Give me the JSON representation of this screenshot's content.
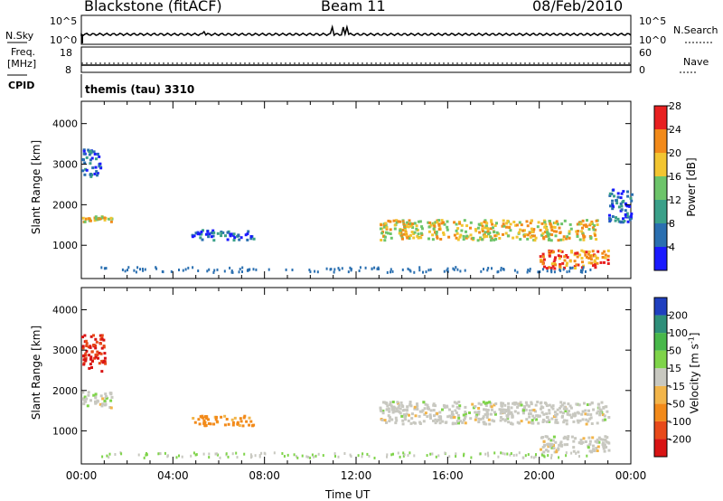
{
  "header": {
    "title": "Blackstone (fitACF)",
    "beam": "Beam 11",
    "date": "08/Feb/2010"
  },
  "top_panels": {
    "nsky_label": "N.Sky",
    "nsky_ticks": [
      "10^5",
      "10^0"
    ],
    "nsearch_label": "N.Search",
    "freq_label_line1": "Freq.",
    "freq_label_line2": "[MHz]",
    "freq_ticks": [
      "18",
      "8"
    ],
    "nave_label": "Nave",
    "nave_ticks": [
      "60",
      "0"
    ],
    "cpid_label": "CPID",
    "cpid_text": "themis (tau) 3310"
  },
  "chart_data": [
    {
      "type": "heatmap",
      "title": "",
      "xlabel": "Time UT",
      "ylabel": "Slant Range [km]",
      "x_tick_labels": [
        "00:00",
        "04:00",
        "08:00",
        "12:00",
        "16:00",
        "20:00",
        "00:00"
      ],
      "y_tick_labels": [
        "1000",
        "2000",
        "3000",
        "4000"
      ],
      "colorbar_label": "Power [dB]",
      "colorbar_ticks": [
        "4",
        "8",
        "12",
        "16",
        "20",
        "24",
        "28"
      ],
      "colorbar_colors": [
        "#1a1aff",
        "#2a6fb0",
        "#3aa089",
        "#6dc46a",
        "#f2c531",
        "#f28a1a",
        "#e82020"
      ],
      "regions": [
        {
          "x": [
            0.0,
            1.3
          ],
          "y": [
            1600,
            1750
          ],
          "value": 18
        },
        {
          "x": [
            0.0,
            0.8
          ],
          "y": [
            2700,
            3400
          ],
          "value": 6
        },
        {
          "x": [
            4.8,
            7.5
          ],
          "y": [
            1150,
            1400
          ],
          "value": 6
        },
        {
          "x": [
            13.0,
            22.5
          ],
          "y": [
            1150,
            1650
          ],
          "value": 20
        },
        {
          "x": [
            20.0,
            23.0
          ],
          "y": [
            450,
            900
          ],
          "value": 22
        },
        {
          "x": [
            23.0,
            24.0
          ],
          "y": [
            1600,
            2400
          ],
          "value": 6
        }
      ]
    },
    {
      "type": "heatmap",
      "title": "",
      "xlabel": "Time UT",
      "ylabel": "Slant Range [km]",
      "x_tick_labels": [
        "00:00",
        "04:00",
        "08:00",
        "12:00",
        "16:00",
        "20:00",
        "00:00"
      ],
      "y_tick_labels": [
        "1000",
        "2000",
        "3000",
        "4000"
      ],
      "colorbar_label": "Velocity [m s^-1]",
      "colorbar_ticks": [
        "200",
        "100",
        "50",
        "15",
        "-15",
        "-50",
        "-100",
        "-200"
      ],
      "colorbar_colors": [
        "#1f3fbf",
        "#2e8f7a",
        "#48b84a",
        "#7fd44a",
        "#c8c8c0",
        "#f2b54a",
        "#f28a1a",
        "#e84a1a",
        "#d81414"
      ],
      "regions": [
        {
          "x": [
            0.0,
            1.3
          ],
          "y": [
            1600,
            2000
          ],
          "value": 0
        },
        {
          "x": [
            0.0,
            1.0
          ],
          "y": [
            2500,
            3400
          ],
          "value": -150
        },
        {
          "x": [
            4.8,
            7.5
          ],
          "y": [
            1150,
            1400
          ],
          "value": -70
        },
        {
          "x": [
            13.0,
            23.0
          ],
          "y": [
            1200,
            1750
          ],
          "value": 0
        },
        {
          "x": [
            20.0,
            23.0
          ],
          "y": [
            500,
            900
          ],
          "value": 0
        }
      ]
    }
  ]
}
